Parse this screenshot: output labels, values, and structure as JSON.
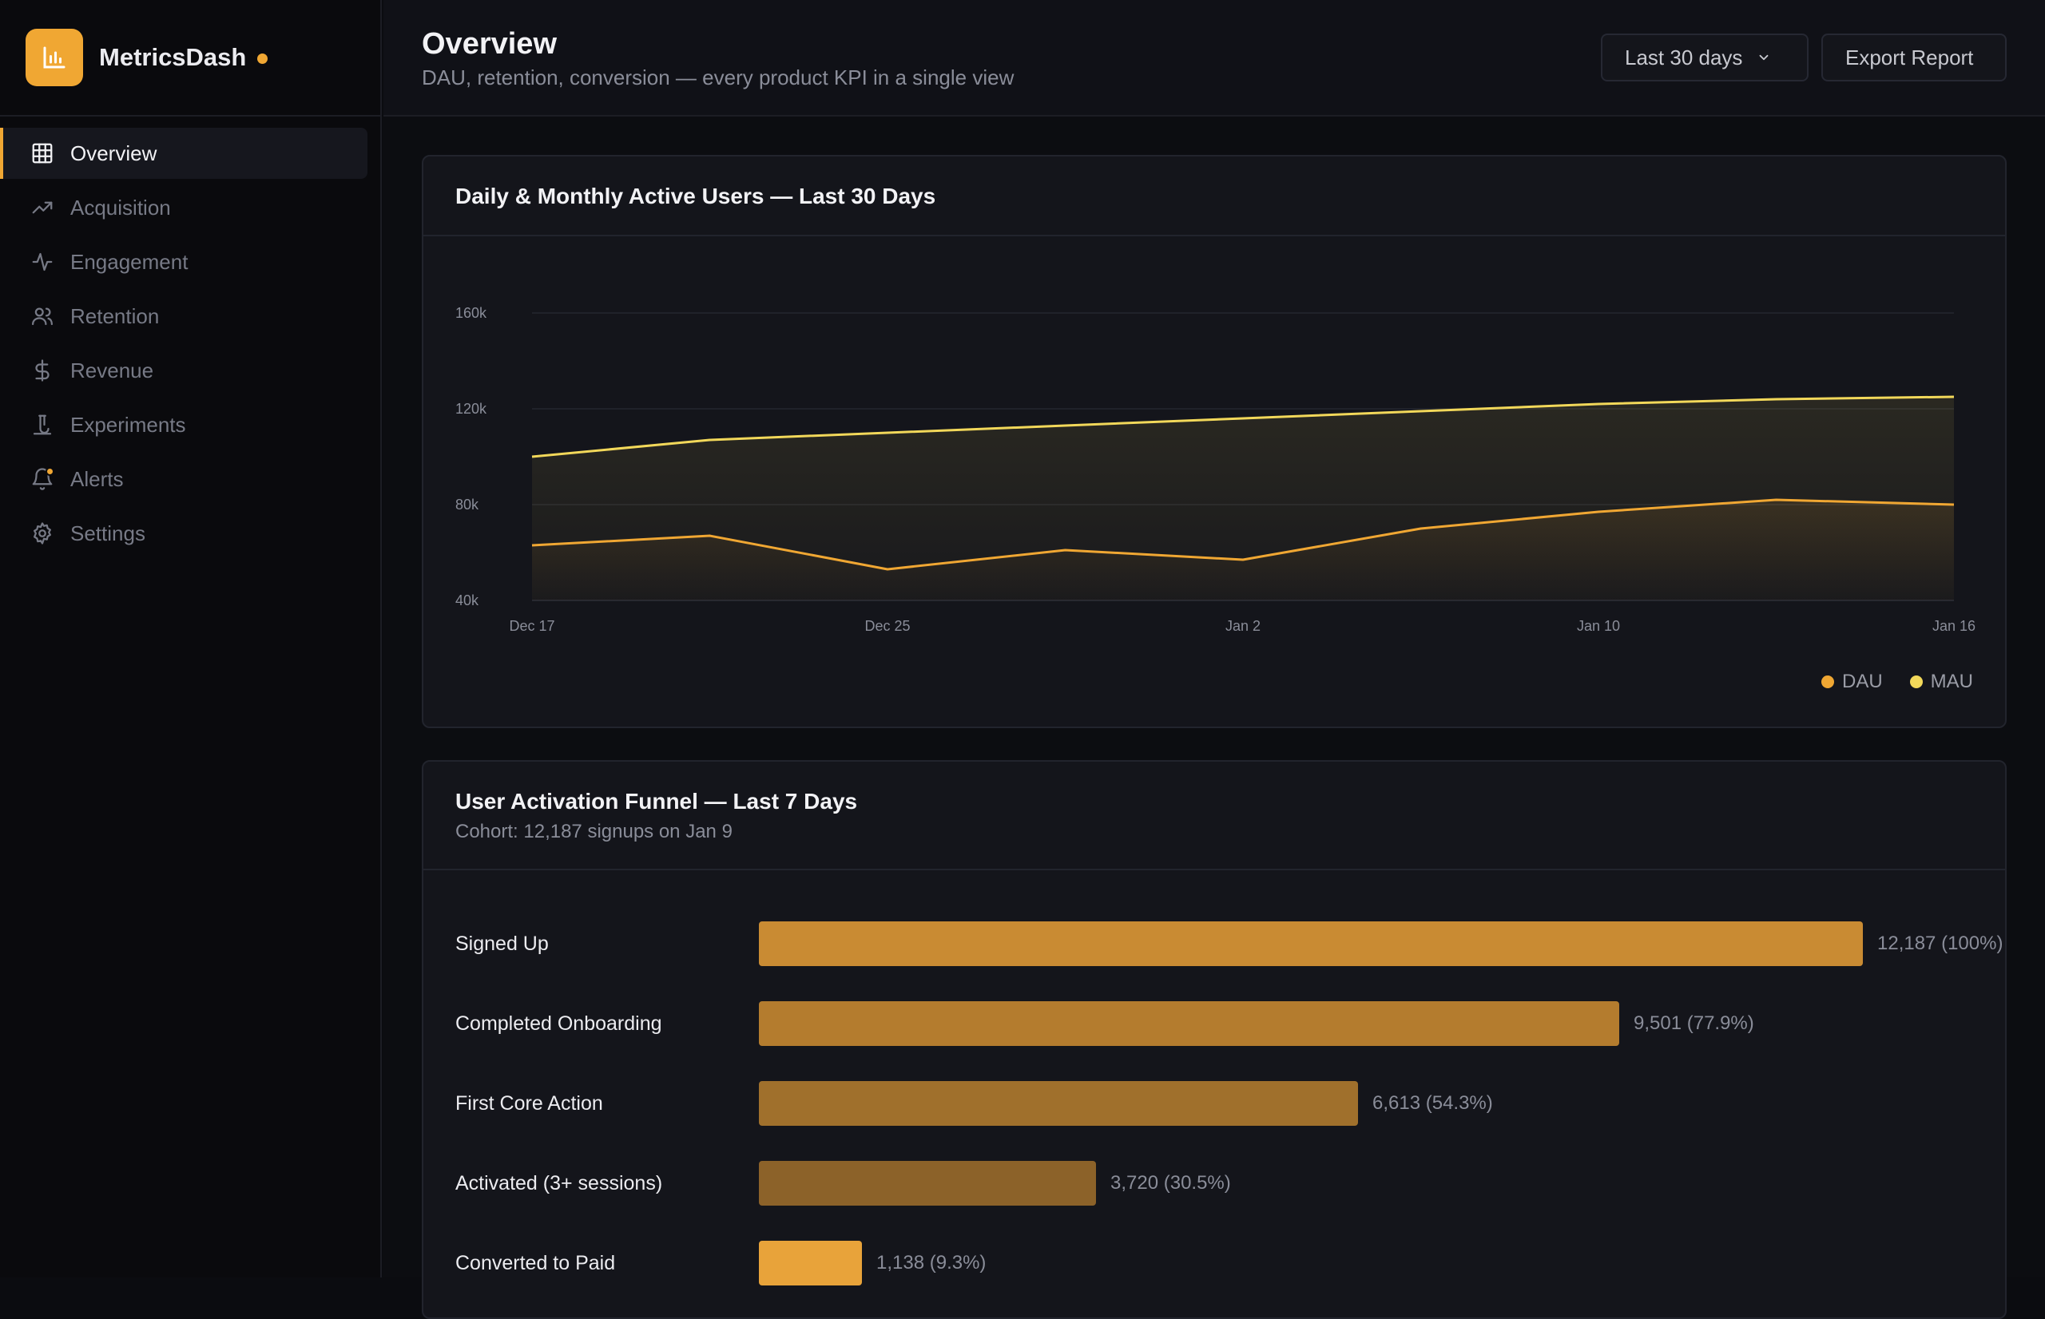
{
  "app": {
    "name": "MetricsDash"
  },
  "sidebar": {
    "items": [
      {
        "label": "Overview",
        "icon": "grid-icon",
        "active": true
      },
      {
        "label": "Acquisition",
        "icon": "trending-up-icon"
      },
      {
        "label": "Engagement",
        "icon": "activity-icon"
      },
      {
        "label": "Retention",
        "icon": "users-icon"
      },
      {
        "label": "Revenue",
        "icon": "dollar-icon"
      },
      {
        "label": "Experiments",
        "icon": "flask-icon"
      },
      {
        "label": "Alerts",
        "icon": "bell-icon",
        "badge": true
      },
      {
        "label": "Settings",
        "icon": "gear-icon"
      }
    ]
  },
  "header": {
    "title": "Overview",
    "subtitle": "DAU, retention, conversion — every product KPI in a single view",
    "range_label": "Last 30 days",
    "export_label": "Export Report"
  },
  "colors": {
    "accent": "#f0a733",
    "dau": "#f0a733",
    "mau": "#f2d85a"
  },
  "chart_data": [
    {
      "type": "line",
      "title": "Daily & Monthly Active Users — Last 30 Days",
      "x_ticks": [
        "Dec 17",
        "Dec 25",
        "Jan 2",
        "Jan 10",
        "Jan 16"
      ],
      "y_ticks": [
        "40k",
        "80k",
        "120k",
        "160k"
      ],
      "ylim": [
        40000,
        160000
      ],
      "grid": true,
      "legend": "bottom-right",
      "series": [
        {
          "name": "DAU",
          "values": [
            63000,
            67000,
            53000,
            61000,
            57000,
            70000,
            77000,
            82000,
            80000
          ]
        },
        {
          "name": "MAU",
          "values": [
            100000,
            107000,
            110000,
            113000,
            116000,
            119000,
            122000,
            124000,
            125000
          ]
        }
      ]
    },
    {
      "type": "bar",
      "title": "User Activation Funnel — Last 7 Days",
      "subtitle": "Cohort: 12,187 signups on Jan 9",
      "categories": [
        "Signed Up",
        "Completed Onboarding",
        "First Core Action",
        "Activated (3+ sessions)",
        "Converted to Paid"
      ],
      "values": [
        12187,
        9501,
        6613,
        3720,
        1138
      ],
      "value_labels": [
        "12,187 (100%)",
        "9,501 (77.9%)",
        "6,613 (54.3%)",
        "3,720 (30.5%)",
        "1,138 (9.3%)"
      ]
    }
  ]
}
